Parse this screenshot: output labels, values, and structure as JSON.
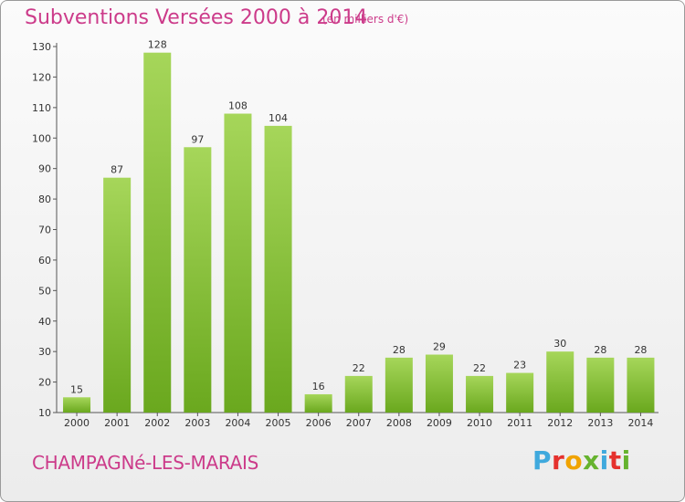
{
  "header": {
    "title": "Subventions Versées 2000 à 2014",
    "subtitle": "(en milliers d'€)"
  },
  "footer": {
    "place": "CHAMPAGNé-LES-MARAIS",
    "logo_letters": [
      "P",
      "r",
      "o",
      "x",
      "i",
      "t",
      "i"
    ]
  },
  "colors": {
    "title": "#cc3b8a",
    "bar_light": "#a6d65a",
    "bar_dark": "#6aa81e",
    "logo": [
      "#3fa9dd",
      "#e5312d",
      "#f0a300",
      "#66b32e",
      "#3fa9dd",
      "#e5312d",
      "#66b32e"
    ]
  },
  "chart_data": {
    "type": "bar",
    "title": "Subventions Versées 2000 à 2014",
    "subtitle": "(en milliers d'€)",
    "categories": [
      "2000",
      "2001",
      "2002",
      "2003",
      "2004",
      "2005",
      "2006",
      "2007",
      "2008",
      "2009",
      "2010",
      "2011",
      "2012",
      "2013",
      "2014"
    ],
    "values": [
      15,
      87,
      128,
      97,
      108,
      104,
      16,
      22,
      28,
      29,
      22,
      23,
      30,
      28,
      28
    ],
    "ylim": [
      10,
      130
    ],
    "yticks": [
      10,
      20,
      30,
      40,
      50,
      60,
      70,
      80,
      90,
      100,
      110,
      120,
      130
    ],
    "grid": false,
    "data_labels": true
  }
}
